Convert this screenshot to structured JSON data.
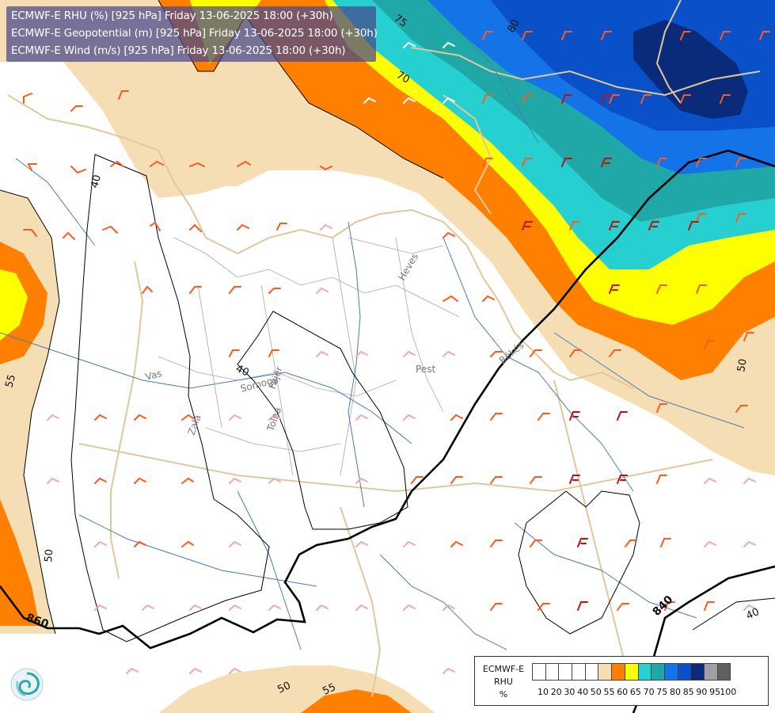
{
  "title": {
    "line1": "ECMWF-E RHU (%) [925 hPa] Friday 13-06-2025 18:00 (+30h)",
    "line2": "ECMWF-E Geopotential (m) [925 hPa] Friday 13-06-2025 18:00 (+30h)",
    "line3": "ECMWF-E Wind (m/s) [925 hPa] Friday 13-06-2025 18:00 (+30h)"
  },
  "legend": {
    "model": "ECMWF-E",
    "variable": "RHU",
    "unit": "%",
    "ticks": [
      "10",
      "20",
      "30",
      "40",
      "50",
      "55",
      "60",
      "65",
      "70",
      "75",
      "80",
      "85",
      "90",
      "95",
      "100"
    ],
    "colors": [
      "#ffffff",
      "#ffffff",
      "#ffffff",
      "#ffffff",
      "#ffffff",
      "#f5deb3",
      "#ff8000",
      "#ffff00",
      "#26d0d0",
      "#20a8a8",
      "#1473e6",
      "#0a50c8",
      "#0a2a7a",
      "#a0a0a0",
      "#606060"
    ]
  },
  "contour_labels": {
    "rhu": [
      "75",
      "70",
      "80",
      "55",
      "40",
      "40",
      "50",
      "50",
      "50",
      "55",
      "40"
    ],
    "geopotential": [
      "860",
      "840"
    ]
  },
  "place_labels": [
    "Heves",
    "Pest",
    "Békés",
    "Vas",
    "Somogy",
    "Fejér",
    "Zala",
    "Tolna"
  ],
  "colors": {
    "rhu55": "#f5deb3",
    "rhu60": "#ff8000",
    "rhu65": "#ffff00",
    "rhu70": "#26d0d0",
    "rhu75": "#20a8a8",
    "rhu80": "#1473e6",
    "rhu85": "#0a50c8",
    "rhu90": "#0a2a7a",
    "title_bg": "#46468c"
  },
  "icons": {
    "logo": "ecmwf-swirl-logo"
  }
}
